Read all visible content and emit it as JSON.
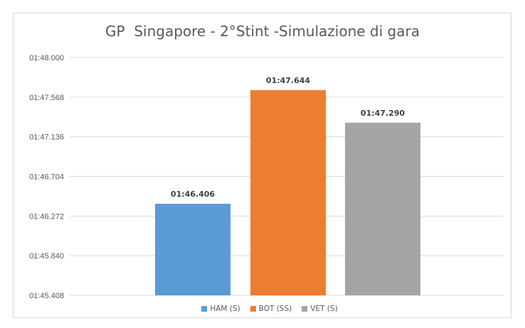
{
  "chart_data": {
    "type": "bar",
    "title": "GP  Singapore - 2°Stint -Simulazione di gara",
    "categories": [
      "HAM (S)",
      "BOT (SS)",
      "VET (S)"
    ],
    "values": [
      106.406,
      107.644,
      107.29
    ],
    "data_labels": [
      "01:46.406",
      "01:47.644",
      "01:47.290"
    ],
    "colors": [
      "#5b9bd5",
      "#ed7d31",
      "#a5a5a5"
    ],
    "ylim": [
      105.408,
      108.0
    ],
    "yticks": [
      105.408,
      105.84,
      106.272,
      106.704,
      107.136,
      107.568,
      108.0
    ],
    "ytick_labels": [
      "01:45.408",
      "01:45.840",
      "01:46.272",
      "01:46.704",
      "01:47.136",
      "01:47.568",
      "01:48.000"
    ],
    "grid": true,
    "legend_position": "bottom",
    "xlabel": "",
    "ylabel": ""
  }
}
